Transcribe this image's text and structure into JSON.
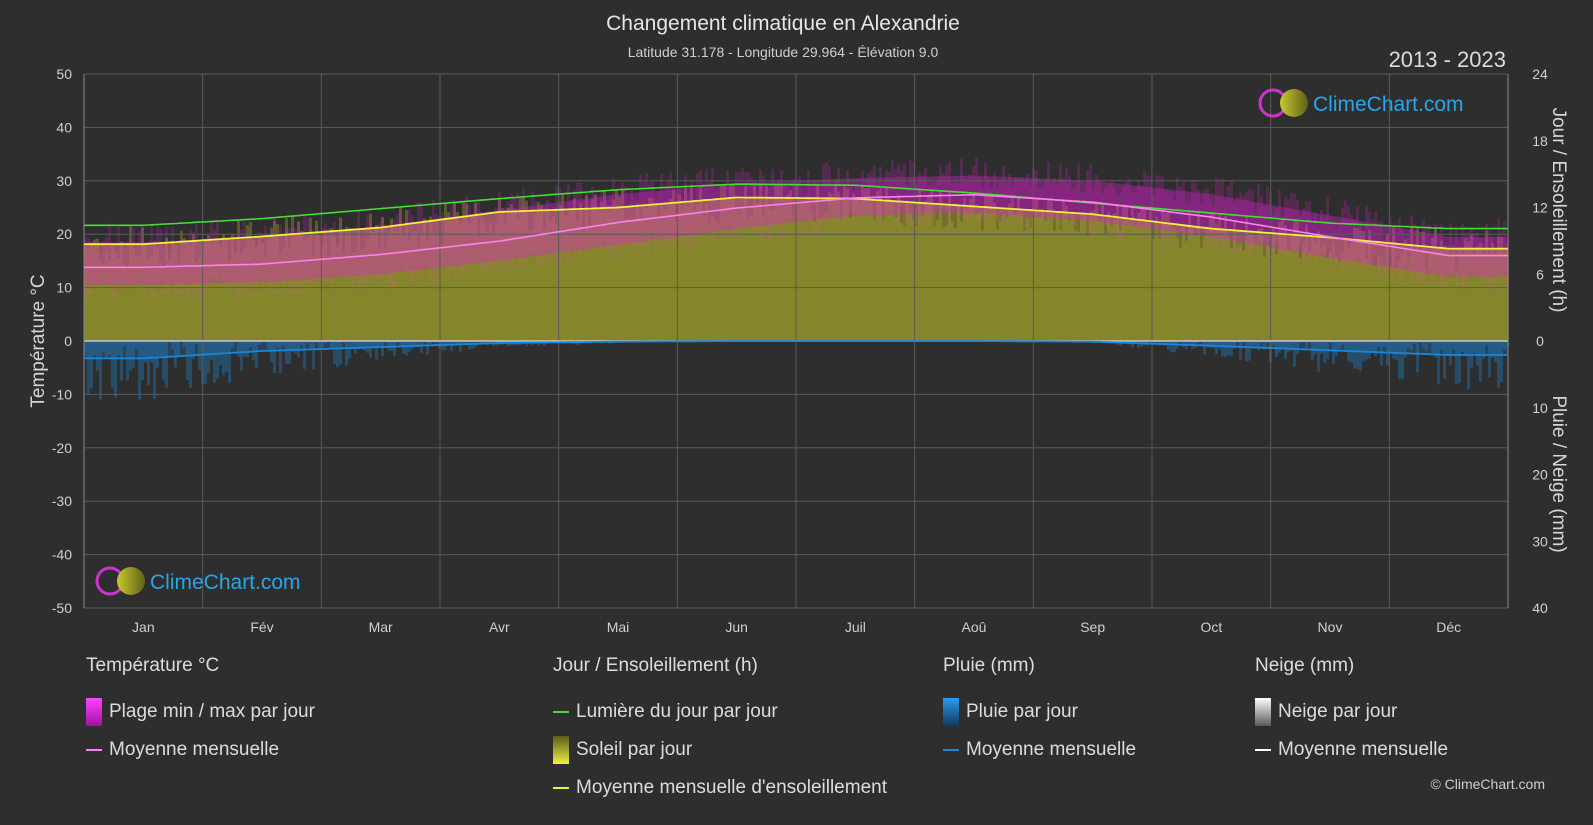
{
  "title": "Changement climatique en Alexandrie",
  "subtitle": "Latitude 31.178 - Longitude 29.964 - Élévation 9.0",
  "period": "2013 - 2023",
  "logo_text": "ClimeChart.com",
  "copyright": "© ClimeChart.com",
  "colors": {
    "background": "#2e2e2e",
    "temp_range": "#e020d0",
    "temp_mean": "#ff80f0",
    "daylight": "#44dd33",
    "sunshine_fill": "#a9a92a",
    "sunshine_mean": "#f2f23a",
    "rain": "#1b86d8",
    "snow": "#ffffff"
  },
  "legend": {
    "temperature": {
      "title": "Température °C",
      "items": [
        "Plage min / max par jour",
        "Moyenne mensuelle"
      ]
    },
    "sun": {
      "title": "Jour / Ensoleillement (h)",
      "items": [
        "Lumière du jour par jour",
        "Soleil par jour",
        "Moyenne mensuelle d'ensoleillement"
      ]
    },
    "rain": {
      "title": "Pluie (mm)",
      "items": [
        "Pluie par jour",
        "Moyenne mensuelle"
      ]
    },
    "snow": {
      "title": "Neige (mm)",
      "items": [
        "Neige par jour",
        "Moyenne mensuelle"
      ]
    }
  },
  "chart_data": {
    "type": "area",
    "categories": [
      "Jan",
      "Fév",
      "Mar",
      "Avr",
      "Mai",
      "Jun",
      "Juil",
      "Aoû",
      "Sep",
      "Oct",
      "Nov",
      "Déc"
    ],
    "y_left": {
      "label": "Température °C",
      "range": [
        -50,
        50
      ],
      "ticks": [
        50,
        40,
        30,
        20,
        10,
        0,
        -10,
        -20,
        -30,
        -40,
        -50
      ]
    },
    "y_right_top": {
      "label": "Jour / Ensoleillement (h)",
      "range": [
        0,
        24
      ],
      "ticks": [
        24,
        18,
        12,
        6,
        0
      ]
    },
    "y_right_bottom": {
      "label": "Pluie / Neige (mm)",
      "range": [
        0,
        40
      ],
      "ticks": [
        10,
        20,
        30,
        40
      ]
    },
    "grid": true,
    "series": [
      {
        "name": "Lumière du jour par jour",
        "unit": "h",
        "values": [
          10.4,
          11.0,
          11.9,
          12.8,
          13.6,
          14.1,
          14.0,
          13.3,
          12.4,
          11.5,
          10.6,
          10.1
        ]
      },
      {
        "name": "Moyenne mensuelle d'ensoleillement",
        "unit": "h",
        "values": [
          8.7,
          9.4,
          10.2,
          11.6,
          12.0,
          12.9,
          12.8,
          12.1,
          11.4,
          10.1,
          9.3,
          8.3
        ]
      },
      {
        "name": "Moyenne mensuelle",
        "unit": "°C",
        "values": [
          13.8,
          14.4,
          16.2,
          18.7,
          22.2,
          24.9,
          26.8,
          27.4,
          26.0,
          23.2,
          19.5,
          16.0
        ]
      },
      {
        "name": "Plage min / max par jour (max)",
        "unit": "°C",
        "values": [
          18.5,
          19.5,
          21.5,
          24.5,
          27.5,
          29.5,
          30.5,
          31.0,
          30.0,
          27.5,
          23.5,
          19.5
        ]
      },
      {
        "name": "Plage min / max par jour (min)",
        "unit": "°C",
        "values": [
          10.5,
          11.0,
          12.5,
          15.0,
          18.0,
          21.0,
          23.5,
          24.0,
          22.5,
          19.5,
          15.5,
          12.0
        ]
      },
      {
        "name": "Pluie Moyenne mensuelle",
        "unit": "mm",
        "values": [
          2.6,
          1.5,
          0.9,
          0.3,
          0.1,
          0.0,
          0.0,
          0.0,
          0.1,
          0.7,
          1.4,
          2.1
        ]
      }
    ]
  }
}
